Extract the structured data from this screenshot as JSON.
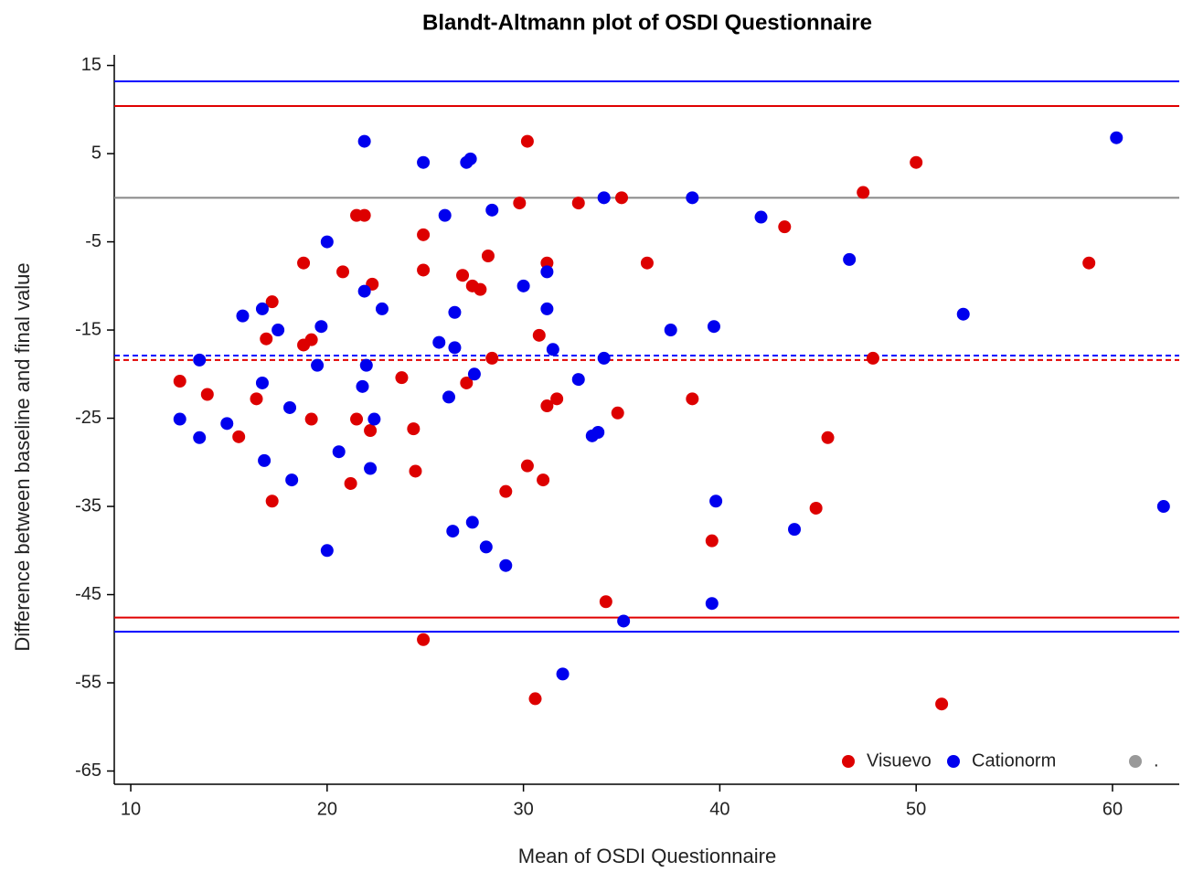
{
  "chart_data": {
    "type": "scatter",
    "title": "Blandt-Altmann plot of OSDI Questionnaire",
    "x_label": "Mean of OSDI Questionnaire",
    "y_label": "Difference between baseline and final value",
    "xlim": [
      9.16,
      63.4
    ],
    "ylim": [
      -66.5,
      16.2
    ],
    "xticks": [
      10,
      20,
      30,
      40,
      50,
      60
    ],
    "yticks": [
      15,
      5,
      -5,
      -15,
      -25,
      -35,
      -45,
      -55,
      -65
    ],
    "legend": "lower right",
    "reference_lines": [
      {
        "value": 13.2,
        "color": "#0000ff",
        "dash": false
      },
      {
        "value": 10.4,
        "color": "#e00000",
        "dash": false
      },
      {
        "value": 0,
        "color": "#888888",
        "dash": false
      },
      {
        "value": -17.9,
        "color": "#0000ff",
        "dash": true
      },
      {
        "value": -18.4,
        "color": "#e00000",
        "dash": true
      },
      {
        "value": -47.6,
        "color": "#e00000",
        "dash": false
      },
      {
        "value": -49.2,
        "color": "#0000ff",
        "dash": false
      }
    ],
    "series": [
      {
        "name": "Visuevo",
        "color": "#dd0000",
        "x": [
          12.5,
          13.9,
          15.5,
          16.4,
          16.9,
          17.2,
          17.2,
          18.8,
          18.8,
          19.2,
          19.2,
          20.8,
          21.2,
          21.5,
          21.5,
          21.9,
          22.2,
          22.3,
          23.8,
          24.4,
          24.5,
          24.9,
          24.9,
          24.9,
          26.9,
          27.1,
          27.4,
          27.8,
          28.2,
          28.4,
          29.1,
          29.8,
          30.2,
          30.2,
          30.6,
          30.8,
          31.0,
          31.2,
          31.2,
          31.7,
          32.8,
          34.2,
          34.8,
          35.0,
          36.3,
          38.6,
          39.6,
          43.3,
          44.9,
          45.5,
          47.3,
          47.8,
          50.0,
          51.3,
          58.8
        ],
        "values": [
          -20.8,
          -22.3,
          -27.1,
          -22.8,
          -16.0,
          -11.8,
          -34.4,
          -7.4,
          -16.7,
          -16.1,
          -25.1,
          -8.4,
          -32.4,
          -2.0,
          -25.1,
          -2.0,
          -26.4,
          -9.8,
          -20.4,
          -26.2,
          -31.0,
          -4.2,
          -8.2,
          -50.1,
          -8.8,
          -21.0,
          -10.0,
          -10.4,
          -6.6,
          -18.2,
          -33.3,
          -0.6,
          6.4,
          -30.4,
          -56.8,
          -15.6,
          -32.0,
          -7.4,
          -23.6,
          -22.8,
          -0.6,
          -45.8,
          -24.4,
          0.0,
          -7.4,
          -22.8,
          -38.9,
          -3.3,
          -35.2,
          -27.2,
          0.6,
          -18.2,
          4.0,
          -57.4,
          -7.4
        ]
      },
      {
        "name": "Cationorm",
        "color": "#0000ee",
        "x": [
          12.5,
          13.5,
          13.5,
          14.9,
          15.7,
          16.7,
          16.7,
          16.8,
          17.5,
          18.1,
          18.2,
          19.5,
          19.7,
          20.0,
          20.0,
          20.6,
          21.8,
          21.9,
          21.9,
          22.0,
          22.2,
          22.4,
          22.8,
          24.9,
          25.7,
          26.0,
          26.2,
          26.4,
          26.5,
          26.5,
          27.1,
          27.3,
          27.4,
          27.5,
          28.1,
          28.4,
          29.1,
          30.0,
          31.2,
          31.2,
          31.5,
          32.0,
          32.8,
          33.5,
          33.8,
          34.1,
          34.1,
          35.1,
          37.5,
          38.6,
          39.6,
          39.7,
          39.8,
          42.1,
          43.8,
          46.6,
          52.4,
          60.2,
          62.6
        ],
        "values": [
          -25.1,
          -18.4,
          -27.2,
          -25.6,
          -13.4,
          -12.6,
          -21.0,
          -29.8,
          -15.0,
          -23.8,
          -32.0,
          -19.0,
          -14.6,
          -5.0,
          -40.0,
          -28.8,
          -21.4,
          6.4,
          -10.6,
          -19.0,
          -30.7,
          -25.1,
          -12.6,
          4.0,
          -16.4,
          -2.0,
          -22.6,
          -37.8,
          -13.0,
          -17.0,
          4.0,
          4.4,
          -36.8,
          -20.0,
          -39.6,
          -1.4,
          -41.7,
          -10.0,
          -8.4,
          -12.6,
          -17.2,
          -54.0,
          -20.6,
          -27.0,
          -26.6,
          0.0,
          -18.2,
          -48.0,
          -15.0,
          0.0,
          -46.0,
          -14.6,
          -34.4,
          -2.2,
          -37.6,
          -7.0,
          -13.2,
          6.8,
          -35.0
        ]
      },
      {
        "name": ".",
        "color": "#999999",
        "x": [],
        "values": []
      }
    ]
  }
}
